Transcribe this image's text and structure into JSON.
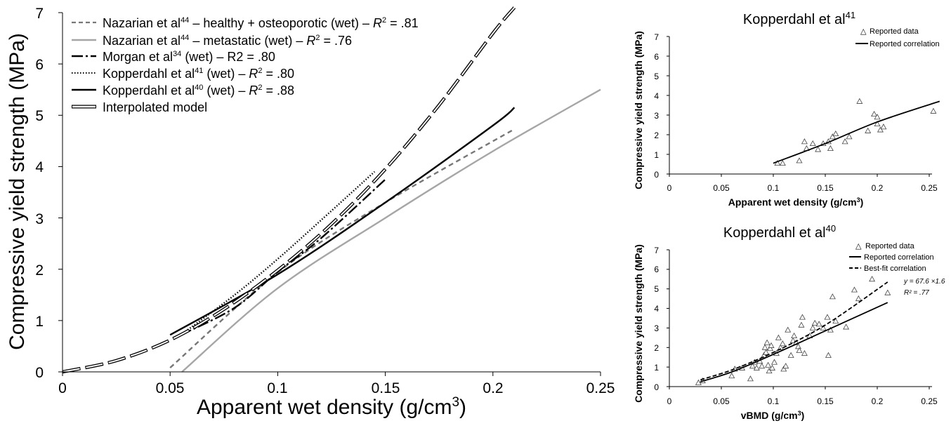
{
  "chart_data": [
    {
      "type": "line",
      "title": "",
      "xlabel": "Apparent wet density (g/cm",
      "xlabel_sup": "3",
      "xlabel_end": ")",
      "ylabel": "Compressive yield strength (MPa)",
      "xlim": [
        0,
        0.25
      ],
      "ylim": [
        0,
        7
      ],
      "x_ticks": [
        "0",
        "0.05",
        "0.1",
        "0.15",
        "0.2",
        "0.25"
      ],
      "y_ticks": [
        "0",
        "1",
        "2",
        "3",
        "4",
        "5",
        "6",
        "7"
      ],
      "grid": false,
      "legend_position": "top-left",
      "series": [
        {
          "label": "Nazarian  et al",
          "sup": "44",
          "label_rest": " – healthy + osteoporotic (wet) – ",
          "r2_label": "R",
          "r2_sup": "2",
          "r2_value": " = .81",
          "color": "#777777",
          "style": "dashed",
          "points": [
            [
              0.05,
              0.08
            ],
            [
              0.1,
              1.94
            ],
            [
              0.15,
              3.3
            ],
            [
              0.21,
              4.73
            ]
          ]
        },
        {
          "label": "Nazarian  et al",
          "sup": "44",
          "label_rest": " – metastatic (wet) – ",
          "r2_label": "R",
          "r2_sup": "2",
          "r2_value": " = .76",
          "color": "#a6a6a6",
          "style": "solid",
          "points": [
            [
              0.0555,
              0.0
            ],
            [
              0.1,
              1.63
            ],
            [
              0.15,
              3.0
            ],
            [
              0.2,
              4.3
            ],
            [
              0.25,
              5.5
            ]
          ]
        },
        {
          "label": "Morgan  et al",
          "sup": "34",
          "label_rest": "  (wet) – R2 = .80",
          "r2_label": "",
          "r2_sup": "",
          "r2_value": "",
          "color": "#000000",
          "style": "dashdot",
          "points": [
            [
              0.055,
              0.72
            ],
            [
              0.08,
              1.25
            ],
            [
              0.1,
              1.95
            ],
            [
              0.12,
              2.6
            ],
            [
              0.15,
              3.75
            ]
          ]
        },
        {
          "label": "Kopperdahl et al",
          "sup": "41",
          "label_rest": " (wet) – ",
          "r2_label": "R",
          "r2_sup": "2",
          "r2_value": " = .80",
          "color": "#000000",
          "style": "dotted",
          "points": [
            [
              0.055,
              0.72
            ],
            [
              0.08,
              1.5
            ],
            [
              0.1,
              2.2
            ],
            [
              0.12,
              2.95
            ],
            [
              0.145,
              3.9
            ]
          ]
        },
        {
          "label": "Kopperdahl et al",
          "sup": "40",
          "label_rest": " (wet) – ",
          "r2_label": "R",
          "r2_sup": "2",
          "r2_value": " = .88",
          "color": "#000000",
          "style": "solid",
          "points": [
            [
              0.05,
              0.72
            ],
            [
              0.1,
              1.9
            ],
            [
              0.15,
              3.3
            ],
            [
              0.2,
              4.8
            ],
            [
              0.21,
              5.15
            ]
          ]
        },
        {
          "label": "Interpolated model",
          "sup": "",
          "label_rest": "",
          "r2_label": "",
          "r2_sup": "",
          "r2_value": "",
          "color": "#000000",
          "style": "hollow-dashed",
          "points": [
            [
              0.0,
              0.0
            ],
            [
              0.025,
              0.22
            ],
            [
              0.05,
              0.62
            ],
            [
              0.075,
              1.22
            ],
            [
              0.1,
              1.98
            ],
            [
              0.125,
              2.88
            ],
            [
              0.15,
              3.95
            ],
            [
              0.175,
              5.2
            ],
            [
              0.2,
              6.6
            ],
            [
              0.21,
              7.1
            ]
          ]
        }
      ]
    },
    {
      "type": "scatter",
      "title": "Kopperdahl et al",
      "title_sup": "41",
      "xlabel": "Apparent wet density (g/cm",
      "xlabel_sup": "3",
      "xlabel_end": ")",
      "ylabel": "Compressive yield strength (MPa)",
      "xlim": [
        0,
        0.25
      ],
      "ylim": [
        0,
        7
      ],
      "x_ticks": [
        "0",
        "0.05",
        "0.1",
        "0.15",
        "0.2",
        "0.25"
      ],
      "y_ticks": [
        "0",
        "1",
        "2",
        "3",
        "4",
        "5",
        "6",
        "7"
      ],
      "grid": false,
      "legend_position": "top-right",
      "legend": [
        "Reported data",
        "Reported correlation"
      ],
      "points": [
        [
          0.104,
          0.55
        ],
        [
          0.109,
          0.55
        ],
        [
          0.125,
          0.68
        ],
        [
          0.13,
          1.65
        ],
        [
          0.132,
          1.3
        ],
        [
          0.138,
          1.55
        ],
        [
          0.143,
          1.25
        ],
        [
          0.148,
          1.55
        ],
        [
          0.153,
          1.65
        ],
        [
          0.155,
          1.3
        ],
        [
          0.157,
          1.9
        ],
        [
          0.16,
          2.05
        ],
        [
          0.169,
          1.65
        ],
        [
          0.173,
          1.9
        ],
        [
          0.183,
          3.7
        ],
        [
          0.191,
          2.2
        ],
        [
          0.197,
          3.05
        ],
        [
          0.2,
          2.55
        ],
        [
          0.2,
          2.9
        ],
        [
          0.203,
          2.25
        ],
        [
          0.206,
          2.4
        ],
        [
          0.254,
          3.2
        ]
      ],
      "correlation": [
        [
          0.1,
          0.55
        ],
        [
          0.15,
          1.55
        ],
        [
          0.2,
          2.65
        ],
        [
          0.26,
          3.7
        ]
      ]
    },
    {
      "type": "scatter",
      "title": "Kopperdahl et al",
      "title_sup": "40",
      "xlabel": "vBMD (g/cm",
      "xlabel_sup": "3",
      "xlabel_end": ")",
      "ylabel": "Compressive yield strength (MPa)",
      "xlim": [
        0,
        0.25
      ],
      "ylim": [
        0,
        7
      ],
      "x_ticks": [
        "0",
        "0.05",
        "0.1",
        "0.15",
        "0.2",
        "0.25"
      ],
      "y_ticks": [
        "0",
        "1",
        "2",
        "3",
        "4",
        "5",
        "6",
        "7"
      ],
      "grid": false,
      "legend_position": "top-right",
      "legend": [
        "Reported data",
        "Reported correlation",
        "Best-fit correlation"
      ],
      "annotation_line1": "y = 67.6 ×1.6",
      "annotation_line2": "R² = .77",
      "points": [
        [
          0.028,
          0.2
        ],
        [
          0.032,
          0.3
        ],
        [
          0.06,
          0.55
        ],
        [
          0.063,
          0.9
        ],
        [
          0.07,
          0.95
        ],
        [
          0.078,
          0.4
        ],
        [
          0.08,
          1.05
        ],
        [
          0.082,
          1.25
        ],
        [
          0.084,
          0.95
        ],
        [
          0.087,
          1.3
        ],
        [
          0.089,
          1.05
        ],
        [
          0.091,
          1.6
        ],
        [
          0.092,
          2.0
        ],
        [
          0.093,
          1.75
        ],
        [
          0.094,
          2.25
        ],
        [
          0.095,
          1.1
        ],
        [
          0.096,
          0.8
        ],
        [
          0.097,
          1.95
        ],
        [
          0.098,
          2.1
        ],
        [
          0.099,
          0.95
        ],
        [
          0.101,
          1.25
        ],
        [
          0.103,
          1.7
        ],
        [
          0.105,
          2.5
        ],
        [
          0.107,
          2.0
        ],
        [
          0.109,
          2.2
        ],
        [
          0.11,
          0.9
        ],
        [
          0.112,
          1.05
        ],
        [
          0.114,
          2.9
        ],
        [
          0.117,
          1.6
        ],
        [
          0.119,
          2.35
        ],
        [
          0.12,
          2.6
        ],
        [
          0.122,
          2.25
        ],
        [
          0.124,
          2.05
        ],
        [
          0.125,
          1.85
        ],
        [
          0.127,
          3.15
        ],
        [
          0.128,
          3.55
        ],
        [
          0.13,
          1.7
        ],
        [
          0.135,
          2.6
        ],
        [
          0.138,
          3.0
        ],
        [
          0.14,
          3.25
        ],
        [
          0.144,
          3.2
        ],
        [
          0.148,
          3.0
        ],
        [
          0.152,
          3.55
        ],
        [
          0.153,
          1.6
        ],
        [
          0.155,
          2.9
        ],
        [
          0.157,
          4.6
        ],
        [
          0.16,
          3.35
        ],
        [
          0.17,
          3.05
        ],
        [
          0.178,
          4.95
        ],
        [
          0.182,
          4.5
        ],
        [
          0.195,
          5.5
        ],
        [
          0.21,
          4.8
        ]
      ],
      "correlation": [
        [
          0.03,
          0.25
        ],
        [
          0.06,
          0.75
        ],
        [
          0.1,
          1.65
        ],
        [
          0.15,
          2.85
        ],
        [
          0.21,
          4.3
        ]
      ],
      "bestfit": [
        [
          0.03,
          0.35
        ],
        [
          0.06,
          0.85
        ],
        [
          0.1,
          1.75
        ],
        [
          0.15,
          3.15
        ],
        [
          0.21,
          5.35
        ]
      ]
    }
  ]
}
